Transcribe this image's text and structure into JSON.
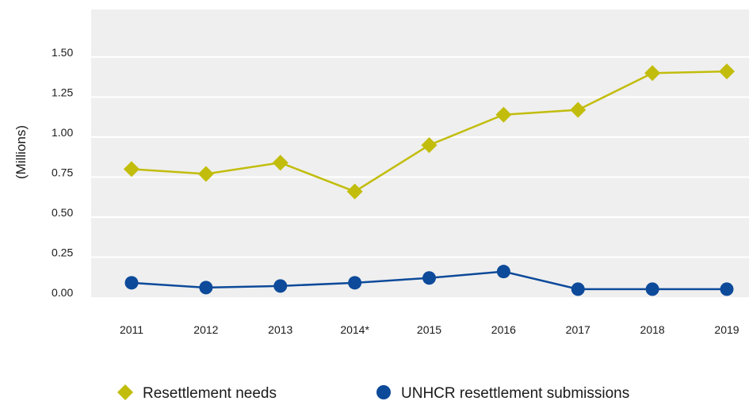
{
  "chart_data": {
    "type": "line",
    "title": "",
    "xlabel": "",
    "ylabel": "(Millions)",
    "categories": [
      "2011",
      "2012",
      "2013",
      "2014*",
      "2015",
      "2016",
      "2017",
      "2018",
      "2019"
    ],
    "yticks": [
      "0.00",
      "0.25",
      "0.50",
      "0.75",
      "1.00",
      "1.25",
      "1.50"
    ],
    "ylim": [
      0,
      1.75
    ],
    "grid": true,
    "legend_position": "bottom",
    "series": [
      {
        "name": "Resettlement needs",
        "marker": "diamond",
        "color": "#c2bd0c",
        "values": [
          0.8,
          0.77,
          0.84,
          0.66,
          0.95,
          1.14,
          1.17,
          1.4,
          1.41
        ]
      },
      {
        "name": "UNHCR resettlement submissions",
        "marker": "circle",
        "color": "#0d4a9a",
        "values": [
          0.09,
          0.06,
          0.07,
          0.09,
          0.12,
          0.16,
          0.05,
          0.05,
          0.05
        ]
      }
    ]
  },
  "colors": {
    "plot_background": "#efefef",
    "gridline": "#ffffff",
    "text": "#1a1a1a"
  }
}
